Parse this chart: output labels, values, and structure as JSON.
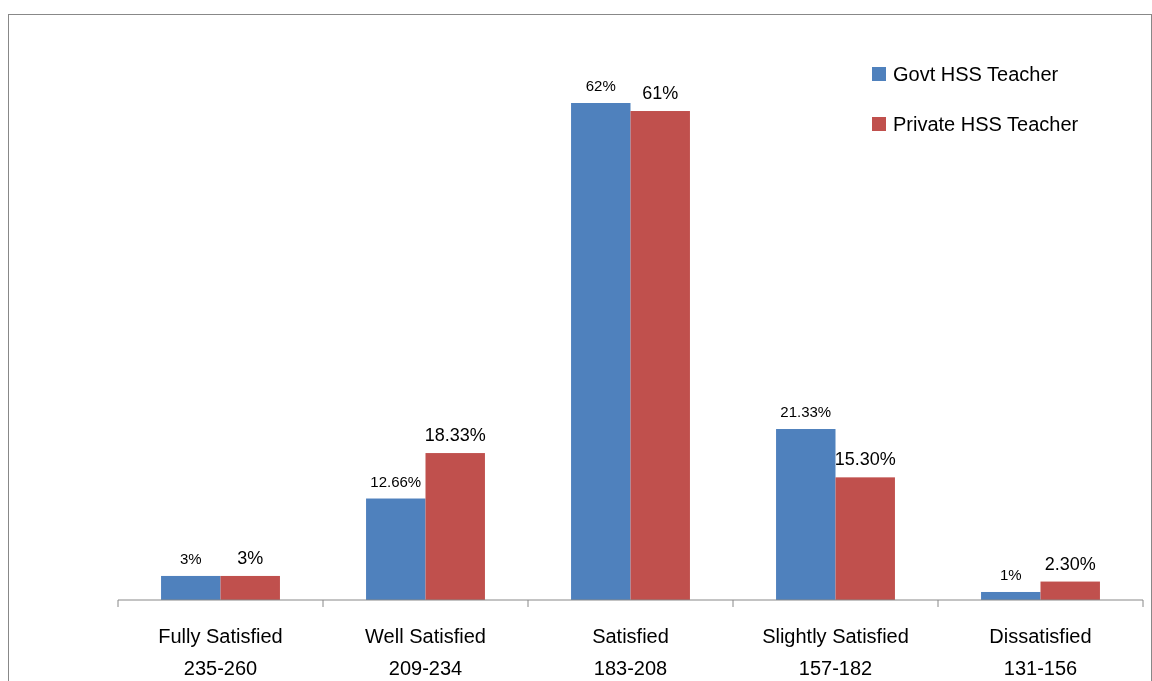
{
  "chart_data": {
    "type": "bar",
    "categories": [
      "Fully Satisfied\n235-260",
      "Well Satisfied\n209-234",
      "Satisfied\n183-208",
      "Slightly Satisfied\n157-182",
      "Dissatisfied\n131-156"
    ],
    "series": [
      {
        "name": "Govt HSS Teacher",
        "color": "#4f81bd",
        "values": [
          3,
          12.66,
          62,
          21.33,
          1
        ],
        "value_labels": [
          "3%",
          "12.66%",
          "62%",
          "21.33%",
          "1%"
        ]
      },
      {
        "name": "Private HSS Teacher",
        "color": "#c0504d",
        "values": [
          3,
          18.33,
          61,
          15.3,
          2.3
        ],
        "value_labels": [
          "3%",
          "18.33%",
          "61%",
          "15.30%",
          "2.30%"
        ]
      }
    ],
    "legend": "top right",
    "grid": false
  }
}
